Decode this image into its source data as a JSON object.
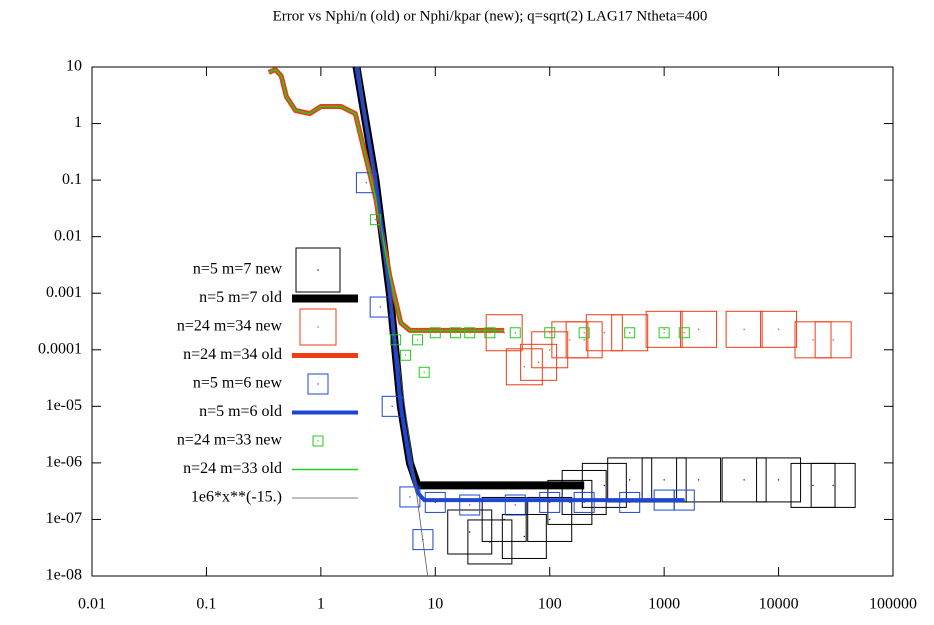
{
  "chart_data": {
    "type": "scatter",
    "title": "Error vs Nphi/n (old) or Nphi/kpar (new); q=sqrt(2) LAG17 Ntheta=400",
    "xlog": true,
    "ylog": true,
    "xlim": [
      0.01,
      100000
    ],
    "ylim": [
      1e-08,
      10
    ],
    "xticks": [
      0.01,
      0.1,
      1,
      10,
      100,
      1000,
      10000,
      100000
    ],
    "yticks": [
      10,
      1,
      0.1,
      0.01,
      0.001,
      0.0001,
      {
        "value": 1e-05,
        "label": "1e-05"
      },
      {
        "value": 1e-06,
        "label": "1e-06"
      },
      {
        "value": 1e-07,
        "label": "1e-07"
      },
      {
        "value": 1e-08,
        "label": "1e-08"
      }
    ],
    "series": [
      {
        "name": "n=5 m=7 new",
        "style": "points",
        "color": "#000000",
        "x": [
          20,
          30,
          40,
          60,
          100,
          150,
          200,
          300,
          500,
          1000,
          2000,
          5000,
          10000,
          20000,
          30000
        ],
        "values": [
          6e-08,
          4e-08,
          1e-07,
          5e-08,
          1e-07,
          2e-07,
          3e-07,
          4e-07,
          5e-07,
          5e-07,
          5e-07,
          5e-07,
          5e-07,
          4e-07,
          4e-07
        ]
      },
      {
        "name": "n=5 m=7 old",
        "style": "line",
        "color": "#000000",
        "x": [
          2.05,
          3,
          4,
          5,
          6,
          7,
          10,
          50,
          200
        ],
        "values": [
          10,
          0.1,
          0.001,
          1e-05,
          1e-06,
          4e-07,
          4e-07,
          4e-07,
          4e-07
        ]
      },
      {
        "name": "n=24 m=34 new",
        "style": "points",
        "color": "#f03c14",
        "x": [
          40,
          60,
          80,
          100,
          150,
          200,
          300,
          500,
          1000,
          2000,
          5000,
          10000,
          20000,
          30000
        ],
        "values": [
          0.0002,
          5e-05,
          6e-05,
          0.0001,
          0.00015,
          0.00015,
          0.0002,
          0.0002,
          0.00023,
          0.00023,
          0.00023,
          0.00023,
          0.00015,
          0.00015
        ]
      },
      {
        "name": "n=24 m=34 old",
        "style": "line",
        "color": "#f03c14",
        "x": [
          0.35,
          0.4,
          0.45,
          0.5,
          0.6,
          0.8,
          1,
          1.5,
          2,
          3,
          4,
          5,
          6,
          10,
          40
        ],
        "values": [
          8,
          9,
          7,
          3,
          1.7,
          1.5,
          2,
          2,
          1.5,
          0.05,
          0.002,
          0.0003,
          0.00022,
          0.00022,
          0.00022
        ]
      },
      {
        "name": "n=5 m=6 new",
        "style": "points",
        "color": "#1e46d2",
        "x": [
          2.5,
          3.3,
          4.2,
          6,
          7.8,
          10,
          20,
          50,
          100,
          200,
          500,
          1000,
          1500
        ],
        "values": [
          0.09,
          0.00057,
          1e-05,
          2.5e-07,
          4.4e-08,
          2e-07,
          1.8e-07,
          1.8e-07,
          2e-07,
          2e-07,
          2e-07,
          2.2e-07,
          2.2e-07
        ]
      },
      {
        "name": "n=5 m=6 old",
        "style": "line",
        "color": "#1e46d2",
        "x": [
          2.05,
          3,
          4,
          5,
          6,
          7,
          8,
          50,
          1500
        ],
        "values": [
          10,
          0.1,
          0.001,
          1e-05,
          1e-06,
          3e-07,
          2.2e-07,
          2.2e-07,
          2.2e-07
        ]
      },
      {
        "name": "n=24 m=33 new",
        "style": "points",
        "color": "#22cc22",
        "x": [
          3,
          4.5,
          5.5,
          7,
          8,
          10,
          15,
          20,
          30,
          50,
          100,
          200,
          500,
          1000,
          1500
        ],
        "values": [
          0.02,
          0.00015,
          8e-05,
          0.00015,
          4e-05,
          0.0002,
          0.0002,
          0.0002,
          0.0002,
          0.0002,
          0.0002,
          0.0002,
          0.0002,
          0.0002,
          0.0002
        ]
      },
      {
        "name": "n=24 m=33 old",
        "style": "line",
        "color": "#22cc22",
        "x": [
          0.35,
          0.4,
          0.45,
          0.5,
          0.6,
          0.8,
          1,
          1.5,
          2,
          3,
          4,
          5,
          6,
          10,
          40
        ],
        "values": [
          8,
          9,
          7,
          3,
          1.7,
          1.5,
          2,
          2,
          1.5,
          0.05,
          0.002,
          0.0003,
          0.00022,
          0.00022,
          0.00022
        ]
      },
      {
        "name": "1e6*x**(-15.)",
        "style": "line",
        "color": "#555555",
        "x": [
          2.154,
          3,
          4,
          5,
          6,
          7,
          8,
          8.577
        ],
        "values": [
          10,
          0.0697,
          0.000931,
          3.28e-05,
          2.13e-06,
          2.1e-07,
          2.84e-08,
          1e-08
        ]
      }
    ]
  }
}
